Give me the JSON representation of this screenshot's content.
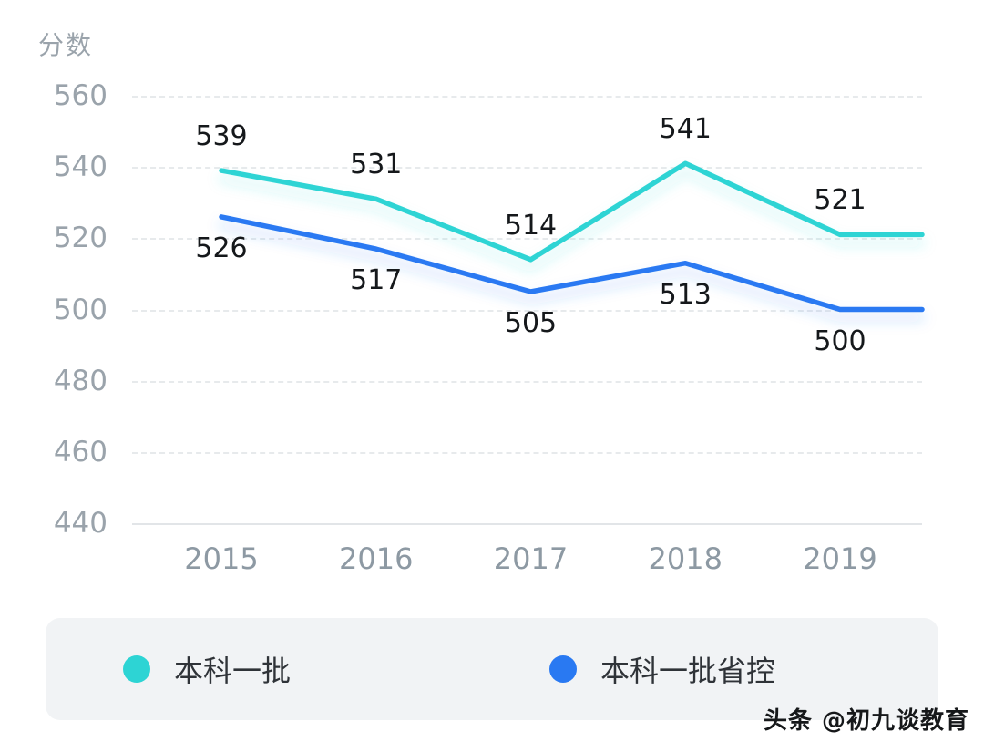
{
  "chart": {
    "y_axis_title": "分数"
  },
  "chart_data": {
    "type": "line",
    "categories": [
      "2015",
      "2016",
      "2017",
      "2018",
      "2019"
    ],
    "series": [
      {
        "name": "本科一批",
        "color": "#2dd4d4",
        "values": [
          539,
          531,
          514,
          541,
          521
        ]
      },
      {
        "name": "本科一批省控",
        "color": "#2979f2",
        "values": [
          526,
          517,
          505,
          513,
          500
        ]
      }
    ],
    "title": "",
    "xlabel": "",
    "ylabel": "分数",
    "ylim": [
      440,
      560
    ],
    "y_ticks": [
      560,
      540,
      520,
      500,
      480,
      460,
      440
    ],
    "grid": "dashed-horizontal",
    "legend_position": "bottom"
  },
  "legend": {
    "items": [
      {
        "label": "本科一批",
        "color": "#2dd4d4"
      },
      {
        "label": "本科一批省控",
        "color": "#2979f2"
      }
    ]
  },
  "watermark": "头条 @初九谈教育"
}
